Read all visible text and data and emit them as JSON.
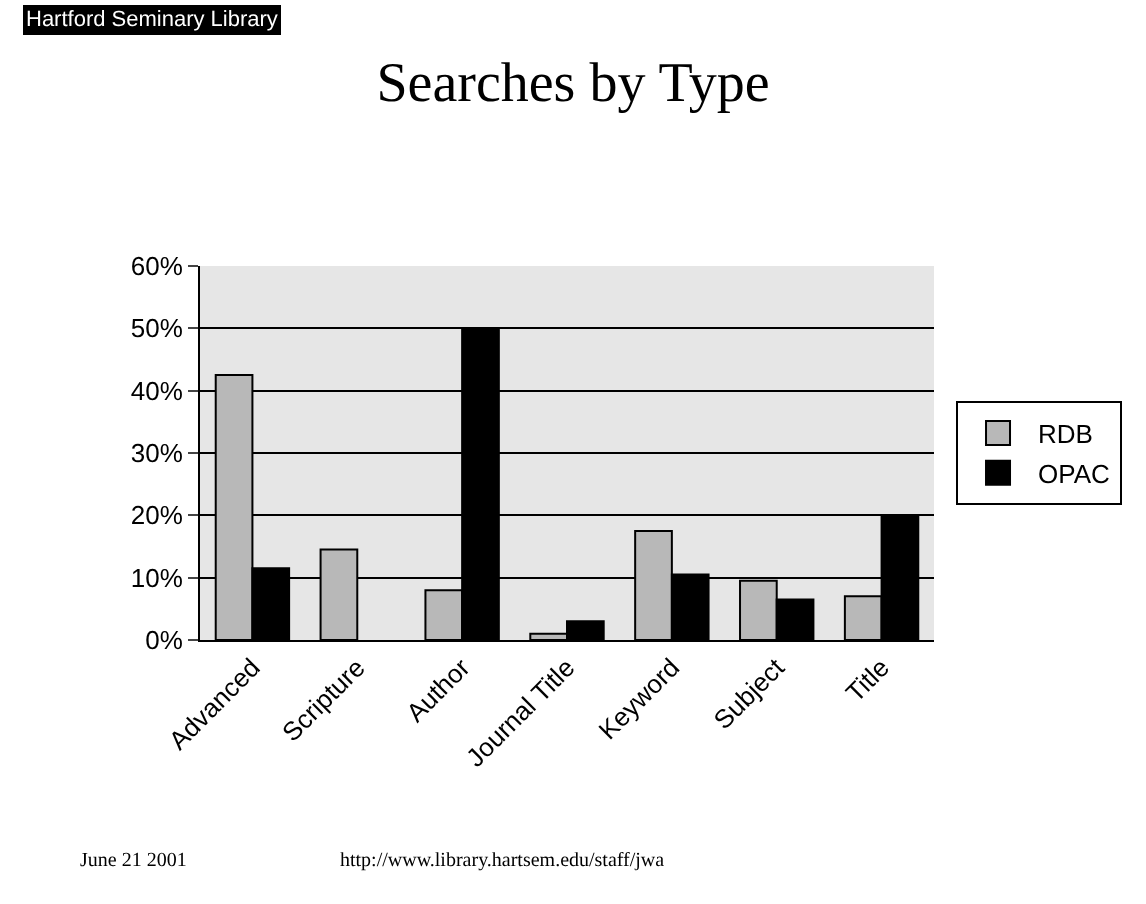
{
  "chart_data": {
    "type": "bar",
    "title": "Searches by Type",
    "categories": [
      "Advanced",
      "Scripture",
      "Author",
      "Journal Title",
      "Keyword",
      "Subject",
      "Title"
    ],
    "series": [
      {
        "name": "RDB",
        "color": "#b8b8b8",
        "values": [
          42.5,
          14.5,
          8,
          1,
          17.5,
          9.5,
          7
        ]
      },
      {
        "name": "OPAC",
        "color": "#000000",
        "values": [
          11.5,
          null,
          50,
          3,
          10.5,
          6.5,
          20
        ]
      }
    ],
    "ylim": [
      0,
      60
    ],
    "yticks": [
      {
        "value": 0,
        "label": "0%"
      },
      {
        "value": 10,
        "label": "10%"
      },
      {
        "value": 20,
        "label": "20%"
      },
      {
        "value": 30,
        "label": "30%"
      },
      {
        "value": 40,
        "label": "40%"
      },
      {
        "value": 50,
        "label": "50%"
      },
      {
        "value": 60,
        "label": "60%"
      }
    ],
    "grid": "y",
    "legend": "right",
    "annotations": [
      "Hartford Seminary Library",
      "June 21 2001",
      "http://www.library.hartsem.edu/staff/jwa"
    ]
  }
}
